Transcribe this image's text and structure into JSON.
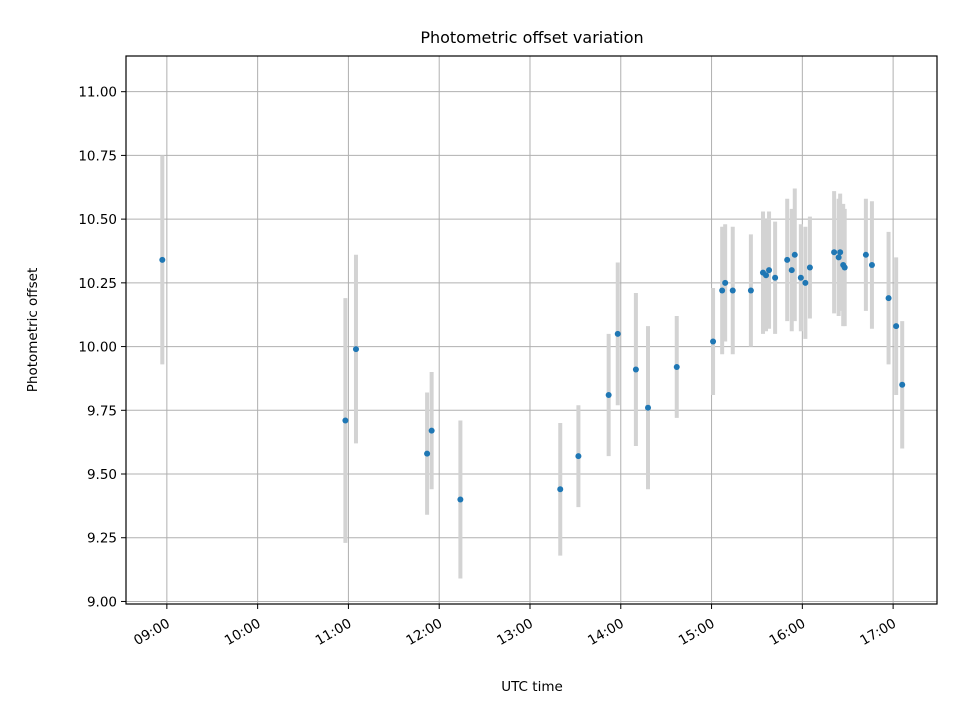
{
  "chart_data": {
    "type": "scatter",
    "title": "Photometric offset variation",
    "xlabel": "UTC time",
    "ylabel": "Photometric offset",
    "x_ticks": [
      "09:00",
      "10:00",
      "11:00",
      "12:00",
      "13:00",
      "14:00",
      "15:00",
      "16:00",
      "17:00"
    ],
    "y_ticks": [
      "9.00",
      "9.25",
      "9.50",
      "9.75",
      "10.00",
      "10.25",
      "10.50",
      "10.75",
      "11.00"
    ],
    "xlim": [
      "08:33",
      "17:29"
    ],
    "ylim": [
      8.99,
      11.14
    ],
    "grid": true,
    "marker_color": "#1f77b4",
    "errorbar_color": "#d3d3d3",
    "points": [
      {
        "t": "08:57",
        "y": 10.34,
        "err": 0.41
      },
      {
        "t": "10:58",
        "y": 9.71,
        "err": 0.48
      },
      {
        "t": "11:05",
        "y": 9.99,
        "err": 0.37
      },
      {
        "t": "11:52",
        "y": 9.58,
        "err": 0.24
      },
      {
        "t": "11:55",
        "y": 9.67,
        "err": 0.23
      },
      {
        "t": "12:14",
        "y": 9.4,
        "err": 0.31
      },
      {
        "t": "13:20",
        "y": 9.44,
        "err": 0.26
      },
      {
        "t": "13:32",
        "y": 9.57,
        "err": 0.2
      },
      {
        "t": "13:52",
        "y": 9.81,
        "err": 0.24
      },
      {
        "t": "13:58",
        "y": 10.05,
        "err": 0.28
      },
      {
        "t": "14:10",
        "y": 9.91,
        "err": 0.3
      },
      {
        "t": "14:18",
        "y": 9.76,
        "err": 0.32
      },
      {
        "t": "14:37",
        "y": 9.92,
        "err": 0.2
      },
      {
        "t": "15:01",
        "y": 10.02,
        "err": 0.21
      },
      {
        "t": "15:07",
        "y": 10.22,
        "err": 0.25
      },
      {
        "t": "15:09",
        "y": 10.25,
        "err": 0.23
      },
      {
        "t": "15:14",
        "y": 10.22,
        "err": 0.25
      },
      {
        "t": "15:26",
        "y": 10.22,
        "err": 0.22
      },
      {
        "t": "15:34",
        "y": 10.29,
        "err": 0.24
      },
      {
        "t": "15:36",
        "y": 10.28,
        "err": 0.22
      },
      {
        "t": "15:38",
        "y": 10.3,
        "err": 0.23
      },
      {
        "t": "15:42",
        "y": 10.27,
        "err": 0.22
      },
      {
        "t": "15:50",
        "y": 10.34,
        "err": 0.24
      },
      {
        "t": "15:53",
        "y": 10.3,
        "err": 0.24
      },
      {
        "t": "15:55",
        "y": 10.36,
        "err": 0.26
      },
      {
        "t": "15:59",
        "y": 10.27,
        "err": 0.21
      },
      {
        "t": "16:02",
        "y": 10.25,
        "err": 0.22
      },
      {
        "t": "16:05",
        "y": 10.31,
        "err": 0.2
      },
      {
        "t": "16:21",
        "y": 10.37,
        "err": 0.24
      },
      {
        "t": "16:24",
        "y": 10.35,
        "err": 0.23
      },
      {
        "t": "16:25",
        "y": 10.37,
        "err": 0.23
      },
      {
        "t": "16:27",
        "y": 10.32,
        "err": 0.24
      },
      {
        "t": "16:28",
        "y": 10.31,
        "err": 0.23
      },
      {
        "t": "16:42",
        "y": 10.36,
        "err": 0.22
      },
      {
        "t": "16:46",
        "y": 10.32,
        "err": 0.25
      },
      {
        "t": "16:57",
        "y": 10.19,
        "err": 0.26
      },
      {
        "t": "17:02",
        "y": 10.08,
        "err": 0.27
      },
      {
        "t": "17:06",
        "y": 9.85,
        "err": 0.25
      }
    ]
  }
}
